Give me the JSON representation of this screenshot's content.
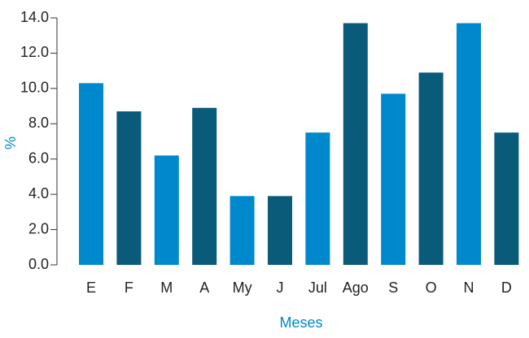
{
  "chart_data": {
    "type": "bar",
    "x_label": "Meses",
    "y_label": "%",
    "categories": [
      "E",
      "F",
      "M",
      "A",
      "My",
      "J",
      "Jul",
      "Ago",
      "S",
      "O",
      "N",
      "D"
    ],
    "values": [
      10.3,
      8.7,
      6.2,
      8.9,
      3.9,
      3.9,
      7.5,
      13.7,
      9.7,
      10.9,
      13.7,
      7.5
    ],
    "colors": [
      "#0088cc",
      "#0a5a7a",
      "#0088cc",
      "#0a5a7a",
      "#0088cc",
      "#0a5a7a",
      "#0088cc",
      "#0a5a7a",
      "#0088cc",
      "#0a5a7a",
      "#0088cc",
      "#0a5a7a"
    ],
    "ylim": [
      0,
      14
    ],
    "yticks": [
      {
        "value": 0,
        "label": "0.0"
      },
      {
        "value": 2,
        "label": "2.0"
      },
      {
        "value": 4,
        "label": "4.0"
      },
      {
        "value": 6,
        "label": "6.0"
      },
      {
        "value": 8,
        "label": "8.0"
      },
      {
        "value": 10,
        "label": "10.0"
      },
      {
        "value": 12,
        "label": "12.0"
      },
      {
        "value": 14,
        "label": "14.0"
      }
    ]
  }
}
